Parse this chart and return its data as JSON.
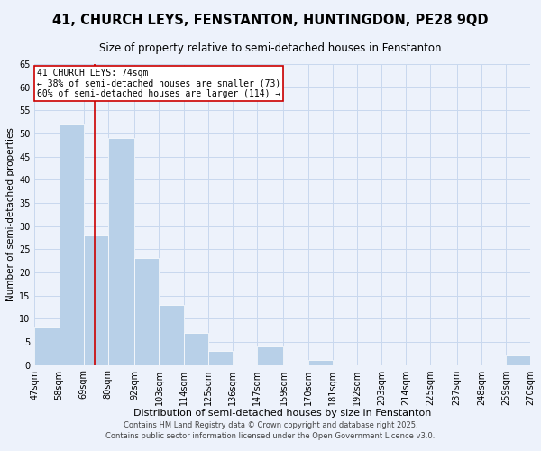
{
  "title": "41, CHURCH LEYS, FENSTANTON, HUNTINGDON, PE28 9QD",
  "subtitle": "Size of property relative to semi-detached houses in Fenstanton",
  "xlabel": "Distribution of semi-detached houses by size in Fenstanton",
  "ylabel": "Number of semi-detached properties",
  "bar_color": "#b8d0e8",
  "bar_edge_color": "#ffffff",
  "grid_color": "#c8d8ee",
  "background_color": "#edf2fb",
  "bin_labels": [
    "47sqm",
    "58sqm",
    "69sqm",
    "80sqm",
    "92sqm",
    "103sqm",
    "114sqm",
    "125sqm",
    "136sqm",
    "147sqm",
    "159sqm",
    "170sqm",
    "181sqm",
    "192sqm",
    "203sqm",
    "214sqm",
    "225sqm",
    "237sqm",
    "248sqm",
    "259sqm",
    "270sqm"
  ],
  "bin_edges": [
    47,
    58,
    69,
    80,
    92,
    103,
    114,
    125,
    136,
    147,
    159,
    170,
    181,
    192,
    203,
    214,
    225,
    237,
    248,
    259,
    270
  ],
  "bar_heights": [
    8,
    52,
    28,
    49,
    23,
    13,
    7,
    3,
    0,
    4,
    0,
    1,
    0,
    0,
    0,
    0,
    0,
    0,
    0,
    2
  ],
  "ylim": [
    0,
    65
  ],
  "yticks": [
    0,
    5,
    10,
    15,
    20,
    25,
    30,
    35,
    40,
    45,
    50,
    55,
    60,
    65
  ],
  "vline_x": 74,
  "vline_color": "#cc0000",
  "annotation_title": "41 CHURCH LEYS: 74sqm",
  "annotation_line1": "← 38% of semi-detached houses are smaller (73)",
  "annotation_line2": "60% of semi-detached houses are larger (114) →",
  "annotation_box_color": "#ffffff",
  "annotation_box_edge": "#cc0000",
  "footer1": "Contains HM Land Registry data © Crown copyright and database right 2025.",
  "footer2": "Contains public sector information licensed under the Open Government Licence v3.0.",
  "title_fontsize": 10.5,
  "subtitle_fontsize": 8.5,
  "xlabel_fontsize": 8,
  "ylabel_fontsize": 7.5,
  "tick_fontsize": 7,
  "annot_fontsize": 7,
  "footer_fontsize": 6
}
